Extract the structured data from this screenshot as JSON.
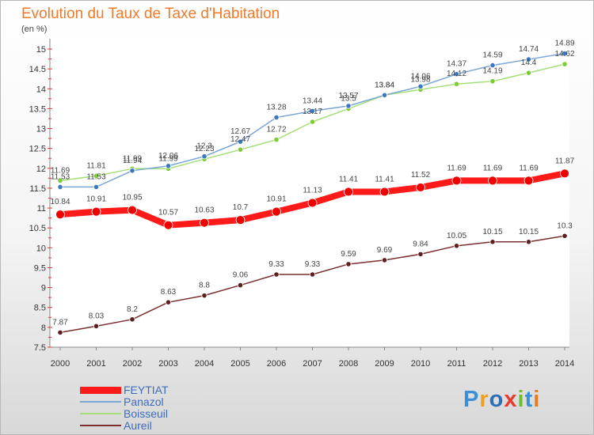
{
  "chart_data": {
    "type": "line",
    "title": "Evolution du Taux de Taxe d'Habitation",
    "unit_label": "(en %)",
    "x": [
      "2000",
      "2001",
      "2002",
      "2003",
      "2004",
      "2005",
      "2006",
      "2007",
      "2008",
      "2009",
      "2010",
      "2011",
      "2012",
      "2013",
      "2014"
    ],
    "y_ticks": [
      "7.5",
      "8",
      "8.5",
      "9",
      "9.5",
      "10",
      "10.5",
      "11",
      "11.5",
      "12",
      "12.5",
      "13",
      "13.5",
      "14",
      "14.5",
      "15"
    ],
    "ylim": [
      7.5,
      15
    ],
    "grid": false,
    "legend_position": "bottom-left",
    "series": [
      {
        "name": "FEYTIAT",
        "color": "#ff0000",
        "marker_color": "#ee0000",
        "values": [
          10.84,
          10.91,
          10.95,
          10.57,
          10.63,
          10.7,
          10.91,
          11.13,
          11.41,
          11.41,
          11.52,
          11.69,
          11.69,
          11.69,
          11.87
        ],
        "labels": [
          "10.84",
          "10.91",
          "10.95",
          "10.57",
          "10.63",
          "10.7",
          "10.91",
          "11.13",
          "11.41",
          "11.41",
          "11.52",
          "11.69",
          "11.69",
          "11.69",
          "11.87"
        ]
      },
      {
        "name": "Panazol",
        "color": "#6699cc",
        "marker_color": "#3a78c2",
        "values": [
          11.53,
          11.53,
          11.94,
          12.06,
          12.3,
          12.67,
          13.28,
          13.44,
          13.57,
          13.84,
          14.06,
          14.37,
          14.59,
          14.74,
          14.89
        ],
        "labels": [
          "11.53",
          "11.53",
          "11.94",
          "12.06",
          "12.3",
          "12.67",
          "13.28",
          "13.44",
          "13.57",
          "13.84",
          "14.06",
          "14.37",
          "14.59",
          "14.74",
          "14.89"
        ]
      },
      {
        "name": "Boisseuil",
        "color": "#99dd66",
        "marker_color": "#7ccc33",
        "values": [
          11.69,
          11.81,
          11.99,
          11.99,
          12.23,
          12.47,
          12.72,
          13.17,
          13.5,
          13.84,
          13.98,
          14.12,
          14.19,
          14.4,
          14.62
        ],
        "labels": [
          "11.69",
          "11.81",
          "11.99",
          "11.99",
          "12.23",
          "12.47",
          "12.72",
          "13.17",
          "13.5",
          "13.84",
          "13.98",
          "14.12",
          "14.19",
          "14.4",
          "14.62"
        ]
      },
      {
        "name": "Aureil",
        "color": "#7a2e2e",
        "marker_color": "#5e1f1f",
        "values": [
          7.87,
          8.03,
          8.2,
          8.63,
          8.8,
          9.06,
          9.33,
          9.33,
          9.59,
          9.69,
          9.84,
          10.05,
          10.15,
          10.15,
          10.3
        ],
        "labels": [
          "7.87",
          "8.03",
          "8.2",
          "8.63",
          "8.8",
          "9.06",
          "9.33",
          "9.33",
          "9.59",
          "9.69",
          "9.84",
          "10.05",
          "10.15",
          "10.15",
          "10.3"
        ]
      }
    ]
  },
  "branding": {
    "logo_text": "Proxiti",
    "letter_colors": [
      "#3a8fd6",
      "#f0a020",
      "#2e6fb8",
      "#e83a2a",
      "#6cbf2a",
      "#3a8fd6",
      "#e87a20"
    ]
  }
}
